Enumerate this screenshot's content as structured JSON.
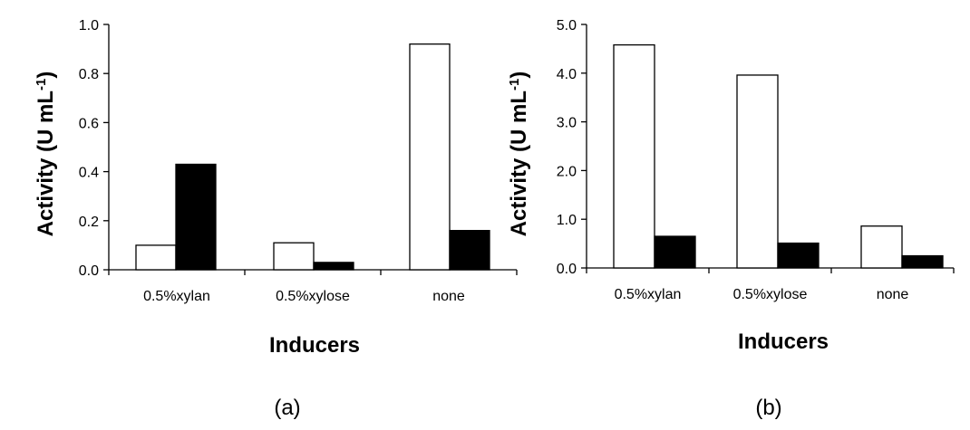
{
  "chart_data": [
    {
      "type": "bar",
      "panel_label": "(a)",
      "xlabel": "Inducers",
      "ylabel_text": "Activity (U mL",
      "ylabel_sup": "-1",
      "ylabel_close": ")",
      "categories": [
        "0.5%xylan",
        "0.5%xylose",
        "none"
      ],
      "series": [
        {
          "fill": "#ffffff",
          "values": [
            0.1,
            0.11,
            0.92
          ]
        },
        {
          "fill": "#000000",
          "values": [
            0.43,
            0.03,
            0.16
          ]
        }
      ],
      "ylim": [
        0,
        1.0
      ],
      "yticks": [
        "0.0",
        "0.2",
        "0.4",
        "0.6",
        "0.8",
        "1.0"
      ],
      "grid": false,
      "legend": "none"
    },
    {
      "type": "bar",
      "panel_label": "(b)",
      "xlabel": "Inducers",
      "ylabel_text": "Activity (U mL",
      "ylabel_sup": "-1",
      "ylabel_close": ")",
      "categories": [
        "0.5%xylan",
        "0.5%xylose",
        "none"
      ],
      "series": [
        {
          "fill": "#ffffff",
          "values": [
            4.58,
            3.96,
            0.86
          ]
        },
        {
          "fill": "#000000",
          "values": [
            0.65,
            0.51,
            0.25
          ]
        }
      ],
      "ylim": [
        0,
        5.0
      ],
      "yticks": [
        "0.0",
        "1.0",
        "2.0",
        "3.0",
        "4.0",
        "5.0"
      ],
      "grid": false,
      "legend": "none"
    }
  ]
}
